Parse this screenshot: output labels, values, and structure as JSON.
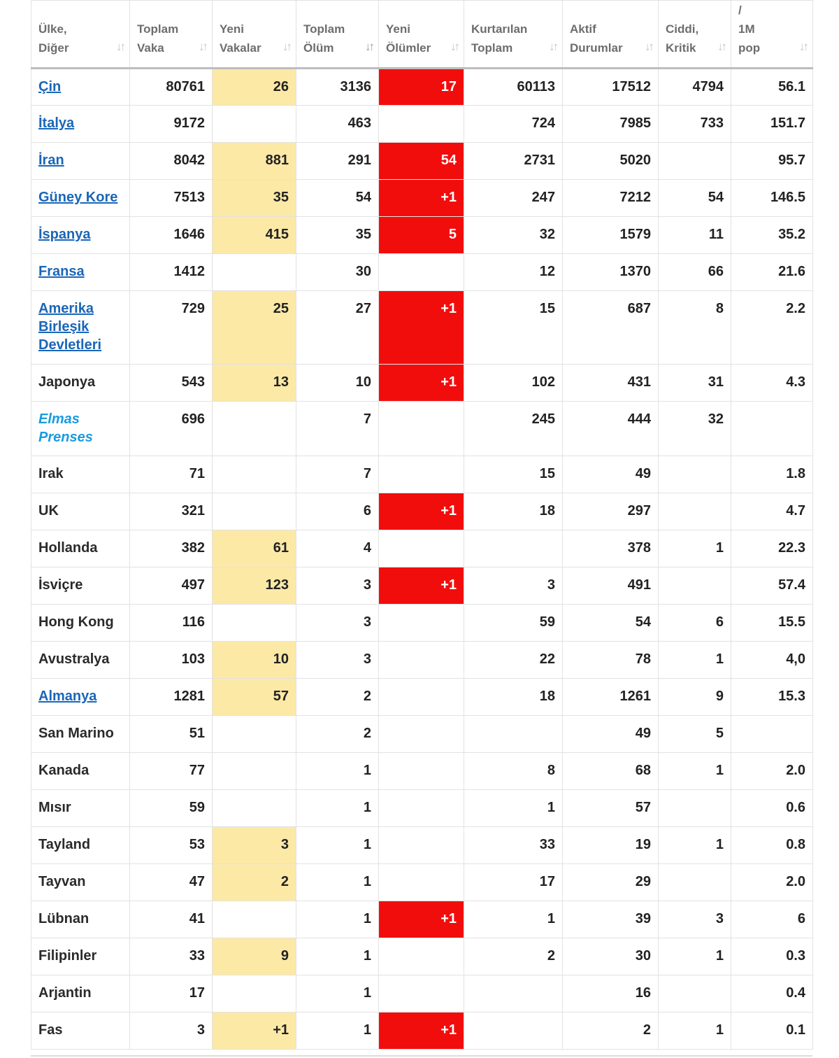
{
  "colors": {
    "new_cases_highlight": "#fce9a6",
    "new_deaths_highlight": "#f20d0d",
    "link": "#1a66b8",
    "special_link": "#1a9be0"
  },
  "icons": {
    "sort": "sort-arrows-icon"
  },
  "headers": {
    "country": "Ülke,\nDiğer",
    "total_cases": "Toplam\nVaka",
    "new_cases": "Yeni\nVakalar",
    "total_deaths": "Toplam\nÖlüm",
    "new_deaths": "Yeni\nÖlümler",
    "total_recovered": "Kurtarılan\nToplam",
    "active_cases": "Aktif\nDurumlar",
    "serious_critical": "Ciddi,\nKritik",
    "per_1m": "/\n1M\npop"
  },
  "rows": [
    {
      "country": "Çin",
      "link": true,
      "total_cases": "80761",
      "new_cases": "26",
      "total_deaths": "3136",
      "new_deaths": "17",
      "total_recovered": "60113",
      "active_cases": "17512",
      "serious_critical": "4794",
      "per_1m": "56.1"
    },
    {
      "country": "İtalya",
      "link": true,
      "total_cases": "9172",
      "new_cases": "",
      "total_deaths": "463",
      "new_deaths": "",
      "total_recovered": "724",
      "active_cases": "7985",
      "serious_critical": "733",
      "per_1m": "151.7"
    },
    {
      "country": "İran",
      "link": true,
      "total_cases": "8042",
      "new_cases": "881",
      "total_deaths": "291",
      "new_deaths": "54",
      "total_recovered": "2731",
      "active_cases": "5020",
      "serious_critical": "",
      "per_1m": "95.7"
    },
    {
      "country": "Güney Kore",
      "link": true,
      "total_cases": "7513",
      "new_cases": "35",
      "total_deaths": "54",
      "new_deaths": "+1",
      "total_recovered": "247",
      "active_cases": "7212",
      "serious_critical": "54",
      "per_1m": "146.5"
    },
    {
      "country": "İspanya",
      "link": true,
      "total_cases": "1646",
      "new_cases": "415",
      "total_deaths": "35",
      "new_deaths": "5",
      "total_recovered": "32",
      "active_cases": "1579",
      "serious_critical": "11",
      "per_1m": "35.2"
    },
    {
      "country": "Fransa",
      "link": true,
      "total_cases": "1412",
      "new_cases": "",
      "total_deaths": "30",
      "new_deaths": "",
      "total_recovered": "12",
      "active_cases": "1370",
      "serious_critical": "66",
      "per_1m": "21.6"
    },
    {
      "country": "Amerika Birleşik Devletleri",
      "link": true,
      "total_cases": "729",
      "new_cases": "25",
      "total_deaths": "27",
      "new_deaths": "+1",
      "total_recovered": "15",
      "active_cases": "687",
      "serious_critical": "8",
      "per_1m": "2.2"
    },
    {
      "country": "Japonya",
      "link": false,
      "total_cases": "543",
      "new_cases": "13",
      "total_deaths": "10",
      "new_deaths": "+1",
      "total_recovered": "102",
      "active_cases": "431",
      "serious_critical": "31",
      "per_1m": "4.3"
    },
    {
      "country": "Elmas Prenses",
      "link": "italic",
      "total_cases": "696",
      "new_cases": "",
      "total_deaths": "7",
      "new_deaths": "",
      "total_recovered": "245",
      "active_cases": "444",
      "serious_critical": "32",
      "per_1m": ""
    },
    {
      "country": "Irak",
      "link": false,
      "total_cases": "71",
      "new_cases": "",
      "total_deaths": "7",
      "new_deaths": "",
      "total_recovered": "15",
      "active_cases": "49",
      "serious_critical": "",
      "per_1m": "1.8"
    },
    {
      "country": "UK",
      "link": false,
      "total_cases": "321",
      "new_cases": "",
      "total_deaths": "6",
      "new_deaths": "+1",
      "total_recovered": "18",
      "active_cases": "297",
      "serious_critical": "",
      "per_1m": "4.7"
    },
    {
      "country": "Hollanda",
      "link": false,
      "total_cases": "382",
      "new_cases": "61",
      "total_deaths": "4",
      "new_deaths": "",
      "total_recovered": "",
      "active_cases": "378",
      "serious_critical": "1",
      "per_1m": "22.3"
    },
    {
      "country": "İsviçre",
      "link": false,
      "total_cases": "497",
      "new_cases": "123",
      "total_deaths": "3",
      "new_deaths": "+1",
      "total_recovered": "3",
      "active_cases": "491",
      "serious_critical": "",
      "per_1m": "57.4"
    },
    {
      "country": "Hong Kong",
      "link": false,
      "total_cases": "116",
      "new_cases": "",
      "total_deaths": "3",
      "new_deaths": "",
      "total_recovered": "59",
      "active_cases": "54",
      "serious_critical": "6",
      "per_1m": "15.5"
    },
    {
      "country": "Avustralya",
      "link": false,
      "total_cases": "103",
      "new_cases": "10",
      "total_deaths": "3",
      "new_deaths": "",
      "total_recovered": "22",
      "active_cases": "78",
      "serious_critical": "1",
      "per_1m": "4,0"
    },
    {
      "country": "Almanya",
      "link": true,
      "total_cases": "1281",
      "new_cases": "57",
      "total_deaths": "2",
      "new_deaths": "",
      "total_recovered": "18",
      "active_cases": "1261",
      "serious_critical": "9",
      "per_1m": "15.3"
    },
    {
      "country": "San Marino",
      "link": false,
      "total_cases": "51",
      "new_cases": "",
      "total_deaths": "2",
      "new_deaths": "",
      "total_recovered": "",
      "active_cases": "49",
      "serious_critical": "5",
      "per_1m": ""
    },
    {
      "country": "Kanada",
      "link": false,
      "total_cases": "77",
      "new_cases": "",
      "total_deaths": "1",
      "new_deaths": "",
      "total_recovered": "8",
      "active_cases": "68",
      "serious_critical": "1",
      "per_1m": "2.0"
    },
    {
      "country": "Mısır",
      "link": false,
      "total_cases": "59",
      "new_cases": "",
      "total_deaths": "1",
      "new_deaths": "",
      "total_recovered": "1",
      "active_cases": "57",
      "serious_critical": "",
      "per_1m": "0.6"
    },
    {
      "country": "Tayland",
      "link": false,
      "total_cases": "53",
      "new_cases": "3",
      "total_deaths": "1",
      "new_deaths": "",
      "total_recovered": "33",
      "active_cases": "19",
      "serious_critical": "1",
      "per_1m": "0.8"
    },
    {
      "country": "Tayvan",
      "link": false,
      "total_cases": "47",
      "new_cases": "2",
      "total_deaths": "1",
      "new_deaths": "",
      "total_recovered": "17",
      "active_cases": "29",
      "serious_critical": "",
      "per_1m": "2.0"
    },
    {
      "country": "Lübnan",
      "link": false,
      "total_cases": "41",
      "new_cases": "",
      "total_deaths": "1",
      "new_deaths": "+1",
      "total_recovered": "1",
      "active_cases": "39",
      "serious_critical": "3",
      "per_1m": "6"
    },
    {
      "country": "Filipinler",
      "link": false,
      "total_cases": "33",
      "new_cases": "9",
      "total_deaths": "1",
      "new_deaths": "",
      "total_recovered": "2",
      "active_cases": "30",
      "serious_critical": "1",
      "per_1m": "0.3"
    },
    {
      "country": "Arjantin",
      "link": false,
      "total_cases": "17",
      "new_cases": "",
      "total_deaths": "1",
      "new_deaths": "",
      "total_recovered": "",
      "active_cases": "16",
      "serious_critical": "",
      "per_1m": "0.4"
    },
    {
      "country": "Fas",
      "link": false,
      "total_cases": "3",
      "new_cases": "+1",
      "total_deaths": "1",
      "new_deaths": "+1",
      "total_recovered": "",
      "active_cases": "2",
      "serious_critical": "1",
      "per_1m": "0.1"
    }
  ]
}
